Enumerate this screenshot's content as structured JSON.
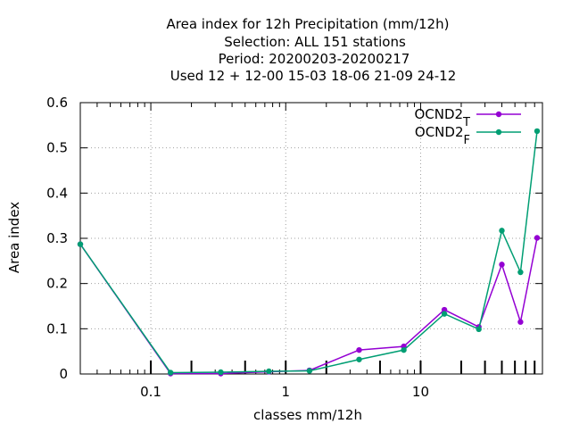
{
  "chart_data": {
    "type": "line",
    "title_lines": [
      "Area index  for 12h Precipitation (mm/12h)",
      "Selection: ALL    151 stations",
      "Period: 20200203-20200217",
      "Used  12 + 12-00 15-03 18-06 21-09 24-12"
    ],
    "xlabel": "classes mm/12h",
    "ylabel": "Area index",
    "x_scale": "log",
    "xlim": [
      0.03,
      80
    ],
    "ylim": [
      0,
      0.6
    ],
    "x_ticks": [
      {
        "value": 0.1,
        "label": "0.1"
      },
      {
        "value": 1,
        "label": "1"
      },
      {
        "value": 10,
        "label": "10"
      }
    ],
    "y_ticks": [
      {
        "value": 0,
        "label": "0"
      },
      {
        "value": 0.1,
        "label": "0.1"
      },
      {
        "value": 0.2,
        "label": "0.2"
      },
      {
        "value": 0.3,
        "label": "0.3"
      },
      {
        "value": 0.4,
        "label": "0.4"
      },
      {
        "value": 0.5,
        "label": "0.5"
      },
      {
        "value": 0.6,
        "label": "0.6"
      }
    ],
    "class_ticks": [
      0.1,
      0.2,
      0.5,
      1,
      2,
      5,
      10,
      20,
      30,
      40,
      50,
      60,
      70
    ],
    "grid": true,
    "legend_position": "top-right",
    "x": [
      0.03,
      0.14,
      0.33,
      0.75,
      1.5,
      3.5,
      7.5,
      15,
      27,
      40,
      55,
      73
    ],
    "series": [
      {
        "name": "OCND2",
        "name_sub": "T",
        "color": "#9400d3",
        "values": [
          0.287,
          0.001,
          0.001,
          0.005,
          0.008,
          0.053,
          0.061,
          0.142,
          0.104,
          0.242,
          0.115,
          0.301
        ]
      },
      {
        "name": "OCND2",
        "name_sub": "F",
        "color": "#009e73",
        "values": [
          0.287,
          0.003,
          0.004,
          0.006,
          0.007,
          0.032,
          0.053,
          0.133,
          0.099,
          0.317,
          0.225,
          0.537
        ]
      }
    ]
  }
}
